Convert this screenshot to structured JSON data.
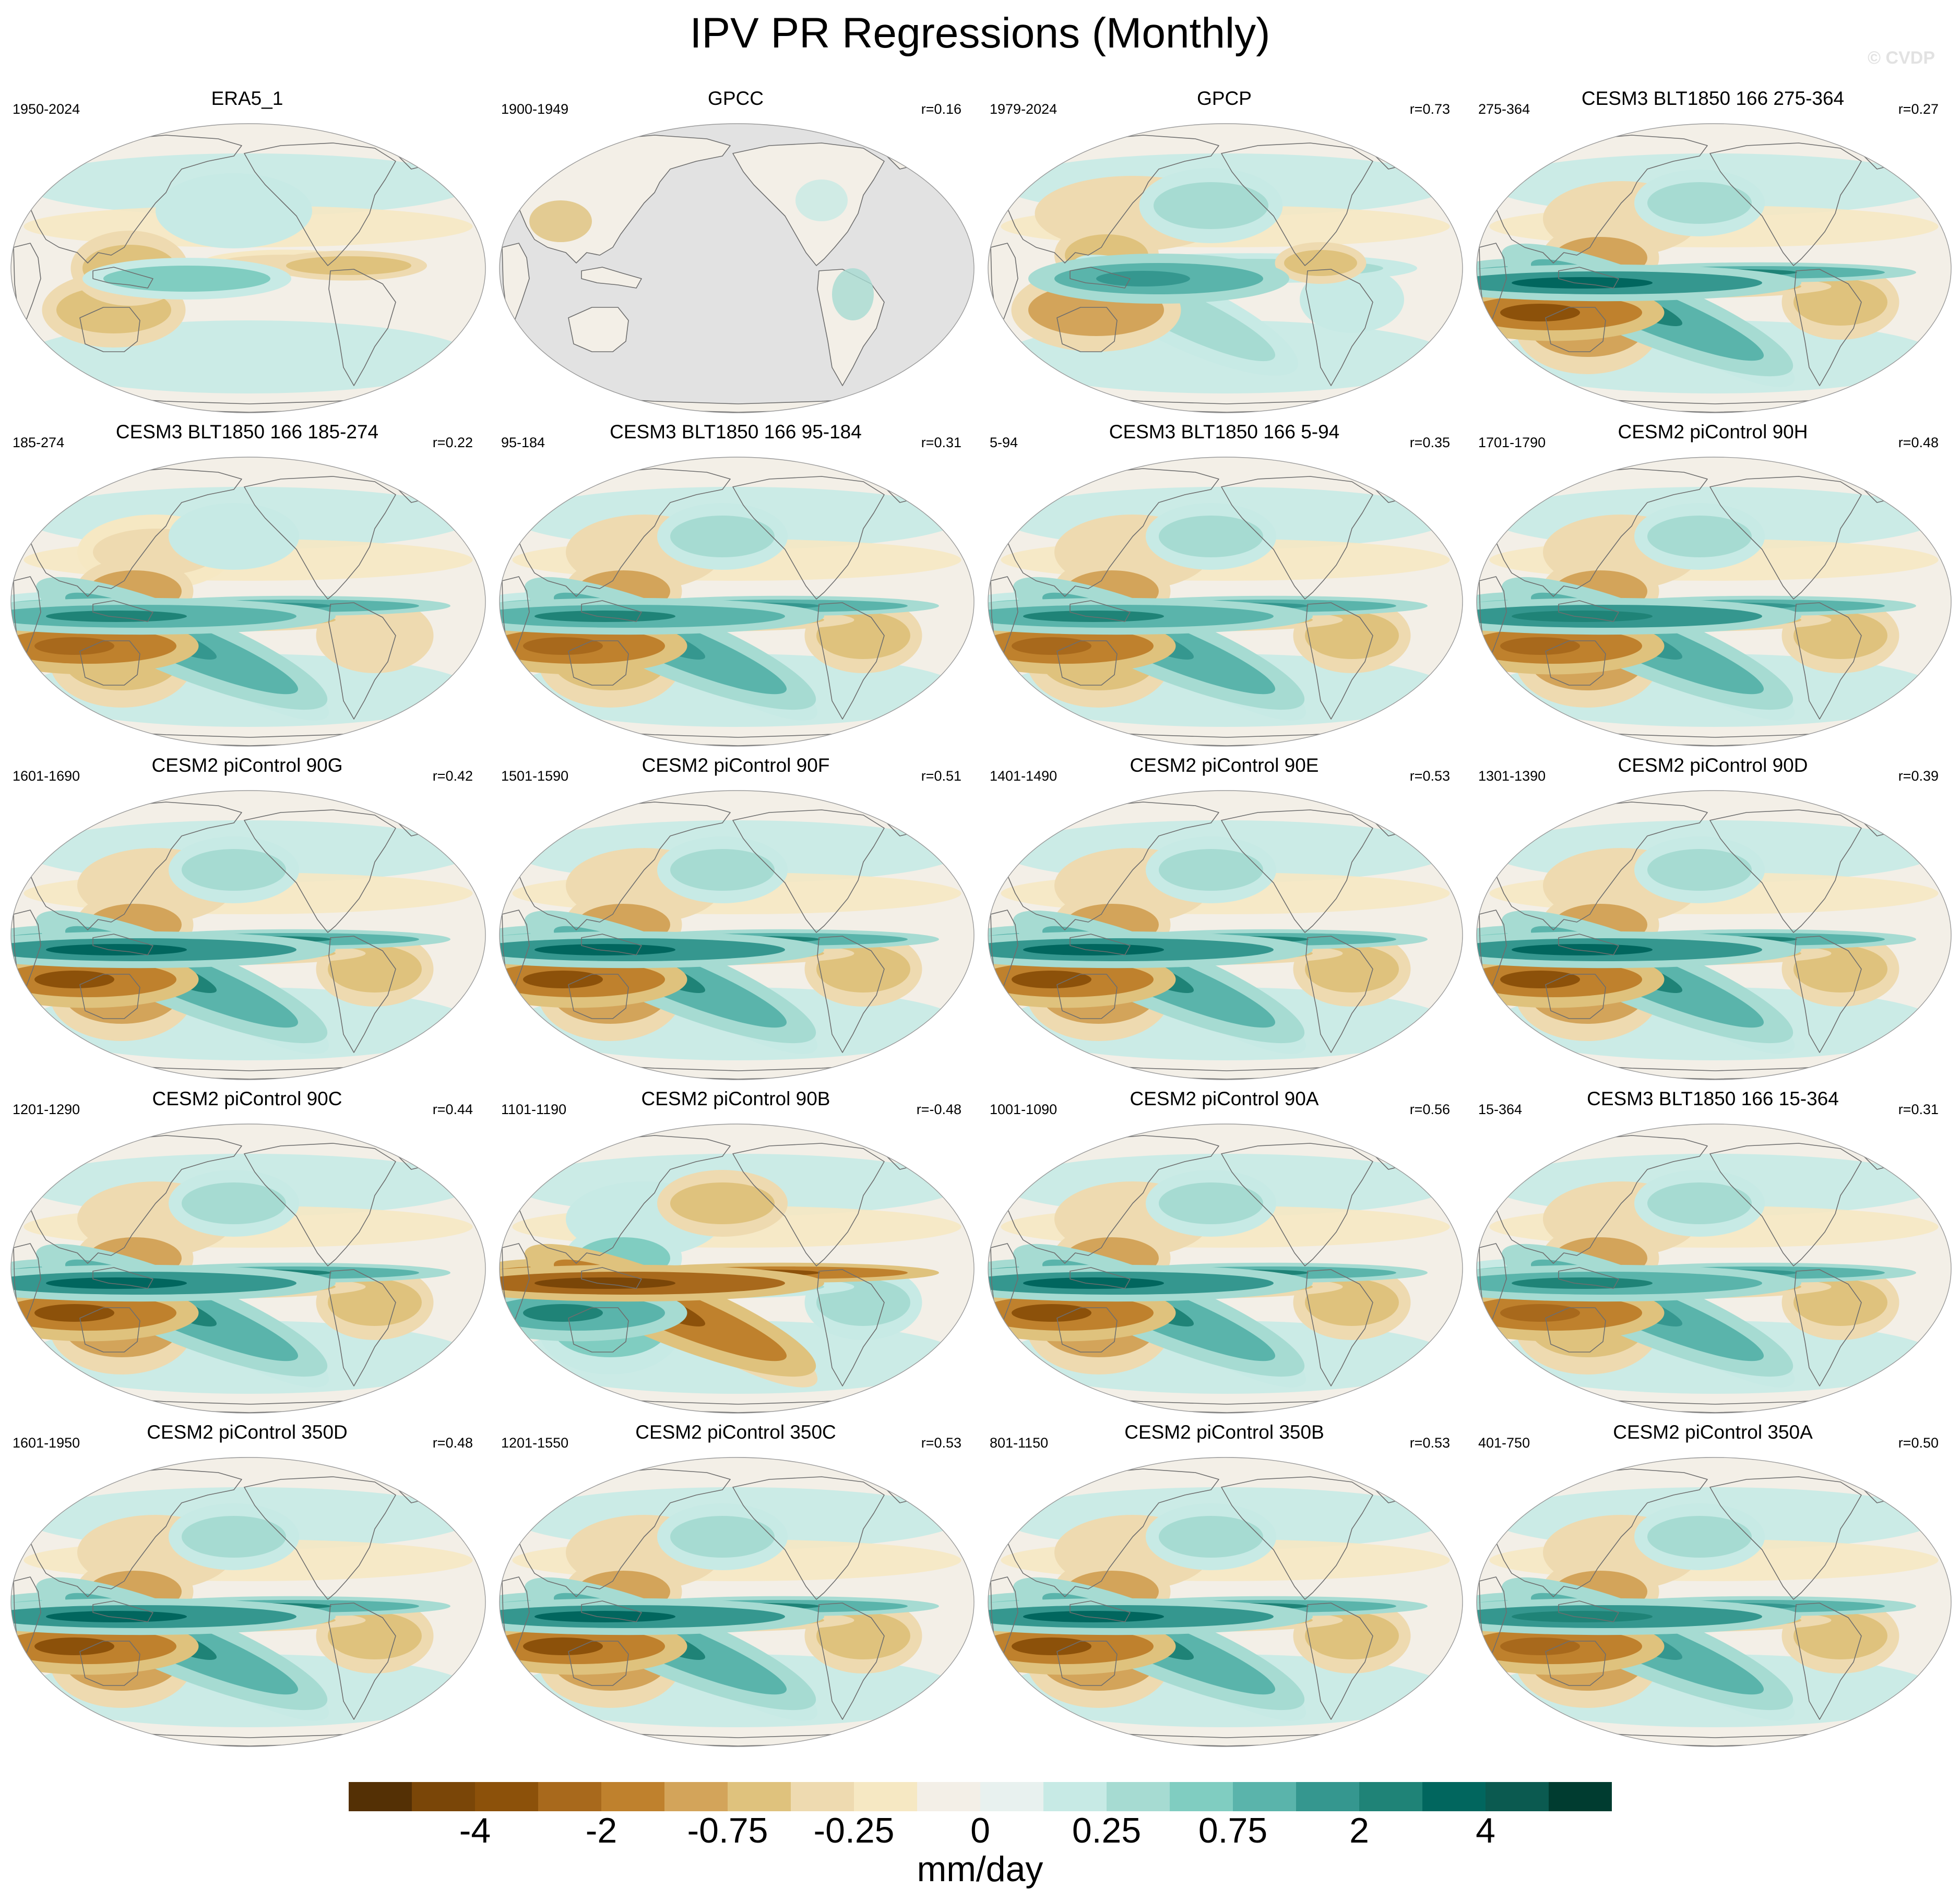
{
  "title": "IPV PR Regressions (Monthly)",
  "watermark": "© CVDP",
  "colors": {
    "ocean_background": "#f3efe7",
    "masked_ocean": "#e2e2e2",
    "coastline": "#6e6e6e",
    "positive_anomaly": "#35978f",
    "negative_anomaly": "#bf812d"
  },
  "panels": [
    {
      "title": "ERA5_1",
      "period": "1950-2024",
      "corr": "",
      "variant": "era5",
      "strength": 0.55
    },
    {
      "title": "GPCC",
      "period": "1900-1949",
      "corr": "r=0.16",
      "variant": "land_only",
      "strength": 0.3
    },
    {
      "title": "GPCP",
      "period": "1979-2024",
      "corr": "r=0.73",
      "variant": "obs",
      "strength": 0.75
    },
    {
      "title": "CESM3 BLT1850 166 275-364",
      "period": "275-364",
      "corr": "r=0.27",
      "variant": "model",
      "strength": 1.0
    },
    {
      "title": "CESM3 BLT1850 166 185-274",
      "period": "185-274",
      "corr": "r=0.22",
      "variant": "model",
      "strength": 0.8
    },
    {
      "title": "CESM3 BLT1850 166 95-184",
      "period": "95-184",
      "corr": "r=0.31",
      "variant": "model",
      "strength": 0.85
    },
    {
      "title": "CESM3 BLT1850 166 5-94",
      "period": "5-94",
      "corr": "r=0.35",
      "variant": "model",
      "strength": 0.85
    },
    {
      "title": "CESM2 piControl 90H",
      "period": "1701-1790",
      "corr": "r=0.48",
      "variant": "model",
      "strength": 0.9
    },
    {
      "title": "CESM2 piControl 90G",
      "period": "1601-1690",
      "corr": "r=0.42",
      "variant": "model",
      "strength": 1.0
    },
    {
      "title": "CESM2 piControl 90F",
      "period": "1501-1590",
      "corr": "r=0.51",
      "variant": "model",
      "strength": 0.95
    },
    {
      "title": "CESM2 piControl 90E",
      "period": "1401-1490",
      "corr": "r=0.53",
      "variant": "model",
      "strength": 1.0
    },
    {
      "title": "CESM2 piControl 90D",
      "period": "1301-1390",
      "corr": "r=0.39",
      "variant": "model",
      "strength": 0.95
    },
    {
      "title": "CESM2 piControl 90C",
      "period": "1201-1290",
      "corr": "r=0.44",
      "variant": "model",
      "strength": 1.0
    },
    {
      "title": "CESM2 piControl 90B",
      "period": "1101-1190",
      "corr": "r=-0.48",
      "variant": "inverted",
      "strength": 1.0
    },
    {
      "title": "CESM2 piControl 90A",
      "period": "1001-1090",
      "corr": "r=0.56",
      "variant": "model",
      "strength": 1.0
    },
    {
      "title": "CESM3 BLT1850 166 15-364",
      "period": "15-364",
      "corr": "r=0.31",
      "variant": "model",
      "strength": 0.85
    },
    {
      "title": "CESM2 piControl 350D",
      "period": "1601-1950",
      "corr": "r=0.48",
      "variant": "model",
      "strength": 0.95
    },
    {
      "title": "CESM2 piControl 350C",
      "period": "1201-1550",
      "corr": "r=0.53",
      "variant": "model",
      "strength": 0.95
    },
    {
      "title": "CESM2 piControl 350B",
      "period": "801-1150",
      "corr": "r=0.53",
      "variant": "model",
      "strength": 0.95
    },
    {
      "title": "CESM2 piControl 350A",
      "period": "401-750",
      "corr": "r=0.50",
      "variant": "model",
      "strength": 0.9
    }
  ],
  "colorbar": {
    "colors": [
      "#543005",
      "#7a4608",
      "#8c510a",
      "#a8691c",
      "#bf812d",
      "#d3a45a",
      "#dfc27d",
      "#eedab0",
      "#f6e8c3",
      "#f3efe7",
      "#e8f1ef",
      "#c7eae5",
      "#a6dbd2",
      "#80cdc1",
      "#5ab4ab",
      "#35978f",
      "#1f8377",
      "#01665e",
      "#0b5a50",
      "#003c30"
    ],
    "labels": [
      "-4",
      "-2",
      "-0.75",
      "-0.25",
      "0",
      "0.25",
      "0.75",
      "2",
      "4"
    ],
    "units": "mm/day"
  }
}
